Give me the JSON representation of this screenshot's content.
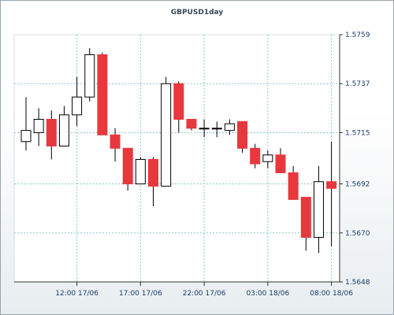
{
  "chart_data": {
    "type": "candlestick",
    "title": "GBPUSD1day",
    "grid": true,
    "ylim": [
      1.5648,
      1.5759
    ],
    "y_ticks": [
      "1.5648",
      "1.5670",
      "1.5692",
      "1.5715",
      "1.5737",
      "1.5759"
    ],
    "x_ticks": [
      "12:00 17/06",
      "17:00 17/06",
      "22:00 17/06",
      "03:00 18/06",
      "08:00 18/06"
    ],
    "colors": {
      "up": "#ffffff",
      "down": "#e8383d",
      "outline": "#000000",
      "grid": "#8cc8c8"
    },
    "candles": [
      {
        "open": 1.5711,
        "close": 1.5716,
        "high": 1.5731,
        "low": 1.5707
      },
      {
        "open": 1.5715,
        "close": 1.5721,
        "high": 1.5726,
        "low": 1.5709
      },
      {
        "open": 1.5721,
        "close": 1.5709,
        "high": 1.5725,
        "low": 1.5703
      },
      {
        "open": 1.5709,
        "close": 1.5723,
        "high": 1.5727,
        "low": 1.5709
      },
      {
        "open": 1.5723,
        "close": 1.5731,
        "high": 1.574,
        "low": 1.5718
      },
      {
        "open": 1.5731,
        "close": 1.575,
        "high": 1.5753,
        "low": 1.5729
      },
      {
        "open": 1.575,
        "close": 1.5714,
        "high": 1.5751,
        "low": 1.5714
      },
      {
        "open": 1.5714,
        "close": 1.5708,
        "high": 1.5717,
        "low": 1.5702
      },
      {
        "open": 1.5708,
        "close": 1.5692,
        "high": 1.5708,
        "low": 1.5689
      },
      {
        "open": 1.5692,
        "close": 1.5703,
        "high": 1.5704,
        "low": 1.5692
      },
      {
        "open": 1.5703,
        "close": 1.5691,
        "high": 1.5704,
        "low": 1.5682
      },
      {
        "open": 1.5691,
        "close": 1.5737,
        "high": 1.574,
        "low": 1.5691
      },
      {
        "open": 1.5737,
        "close": 1.5721,
        "high": 1.5738,
        "low": 1.5715
      },
      {
        "open": 1.5721,
        "close": 1.5717,
        "high": 1.5721,
        "low": 1.5716
      },
      {
        "open": 1.5717,
        "close": 1.5717,
        "high": 1.5721,
        "low": 1.5713
      },
      {
        "open": 1.5717,
        "close": 1.5717,
        "high": 1.572,
        "low": 1.5713
      },
      {
        "open": 1.5716,
        "close": 1.5719,
        "high": 1.5721,
        "low": 1.5714
      },
      {
        "open": 1.572,
        "close": 1.5708,
        "high": 1.572,
        "low": 1.5706
      },
      {
        "open": 1.5708,
        "close": 1.5701,
        "high": 1.571,
        "low": 1.5699
      },
      {
        "open": 1.5702,
        "close": 1.5705,
        "high": 1.5707,
        "low": 1.5699
      },
      {
        "open": 1.5705,
        "close": 1.5697,
        "high": 1.5708,
        "low": 1.5697
      },
      {
        "open": 1.5697,
        "close": 1.5685,
        "high": 1.57,
        "low": 1.5685
      },
      {
        "open": 1.5686,
        "close": 1.5668,
        "high": 1.5686,
        "low": 1.5662
      },
      {
        "open": 1.5668,
        "close": 1.5693,
        "high": 1.57,
        "low": 1.5661
      },
      {
        "open": 1.5693,
        "close": 1.569,
        "high": 1.5711,
        "low": 1.5664
      }
    ]
  }
}
